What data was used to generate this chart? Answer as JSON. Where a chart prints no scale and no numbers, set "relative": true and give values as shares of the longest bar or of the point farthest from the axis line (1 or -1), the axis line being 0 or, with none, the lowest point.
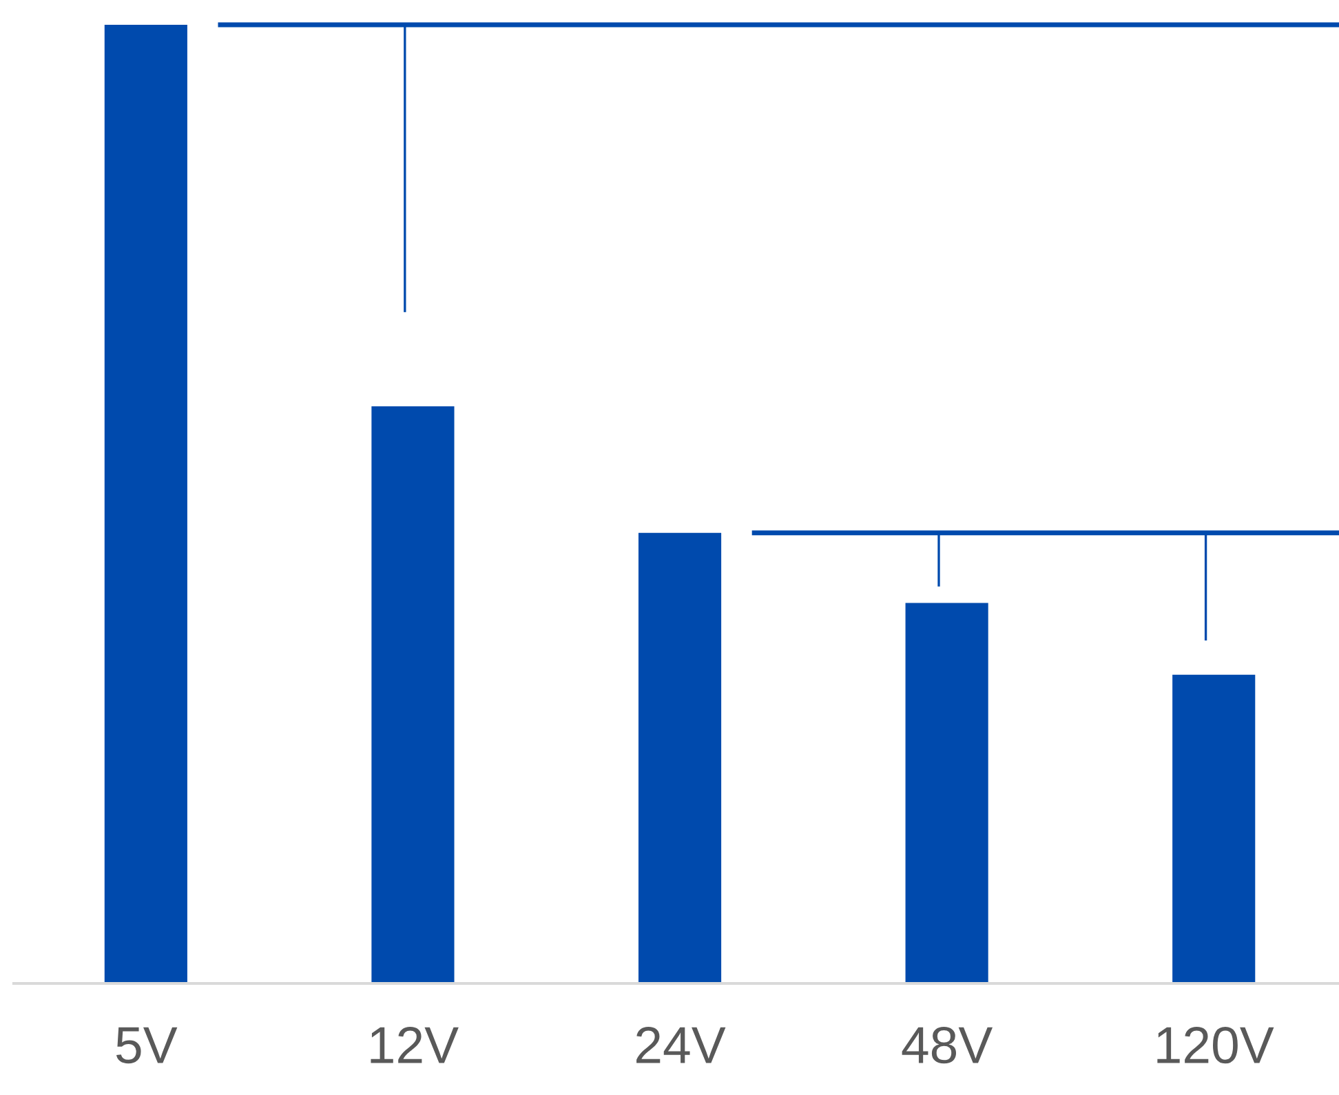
{
  "chart_data": {
    "type": "bar",
    "relative": true,
    "categories": [
      "5V",
      "12V",
      "24V",
      "48V",
      "120V"
    ],
    "values": [
      1,
      0.602,
      0.47,
      0.397,
      0.322
    ],
    "color": "#004aad",
    "grid": false,
    "legend": false,
    "ref_lines": [
      {
        "axis": "y",
        "value": 1,
        "color": "#004aad"
      },
      {
        "axis": "y",
        "value": 0.47,
        "color": "#004aad"
      }
    ]
  }
}
